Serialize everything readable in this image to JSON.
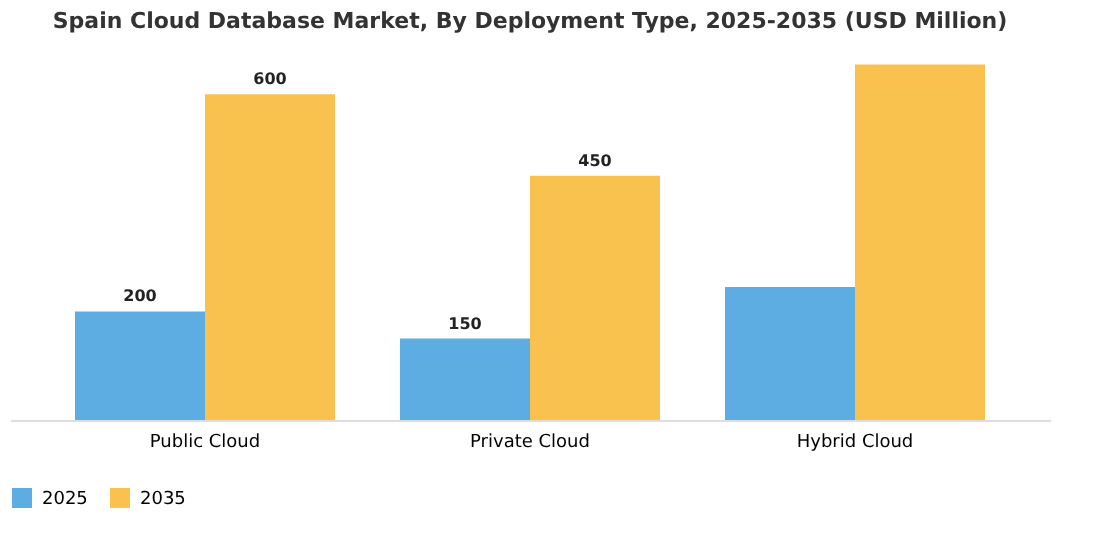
{
  "chart_data": {
    "type": "bar",
    "title": "Spain Cloud Database Market, By Deployment Type, 2025-2035 (USD Million)",
    "categories": [
      "Public Cloud",
      "Private Cloud",
      "Hybrid Cloud"
    ],
    "series": [
      {
        "name": "2025",
        "color": "#5dade2",
        "values": [
          200,
          150,
          245
        ],
        "value_labels": [
          "200",
          "150",
          null
        ]
      },
      {
        "name": "2035",
        "color": "#f9c24e",
        "values": [
          600,
          450,
          655
        ],
        "value_labels": [
          "600",
          "450",
          null
        ]
      }
    ],
    "legend": "bottom",
    "grid": false
  }
}
